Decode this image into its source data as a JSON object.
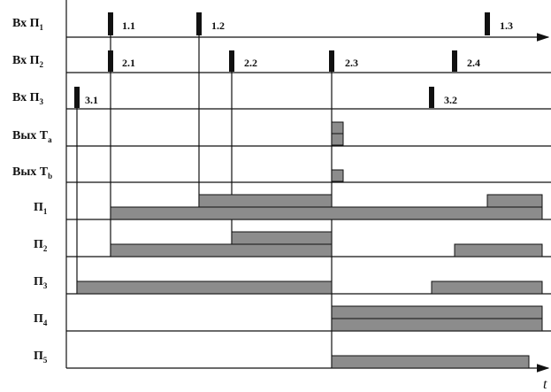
{
  "rows": [
    {
      "label": "Вх П",
      "sub": "1"
    },
    {
      "label": "Вх П",
      "sub": "2"
    },
    {
      "label": "Вх П",
      "sub": "3"
    },
    {
      "label": "Вых T",
      "sub": "a"
    },
    {
      "label": "Вых T",
      "sub": "b"
    },
    {
      "label": "П",
      "sub": "1"
    },
    {
      "label": "П",
      "sub": "2"
    },
    {
      "label": "П",
      "sub": "3"
    },
    {
      "label": "П",
      "sub": "4"
    },
    {
      "label": "П",
      "sub": "5"
    }
  ],
  "pulses": [
    "1.1",
    "1.2",
    "1.3",
    "2.1",
    "2.2",
    "2.3",
    "2.4",
    "3.1",
    "3.2"
  ],
  "axis": {
    "label": "t"
  }
}
